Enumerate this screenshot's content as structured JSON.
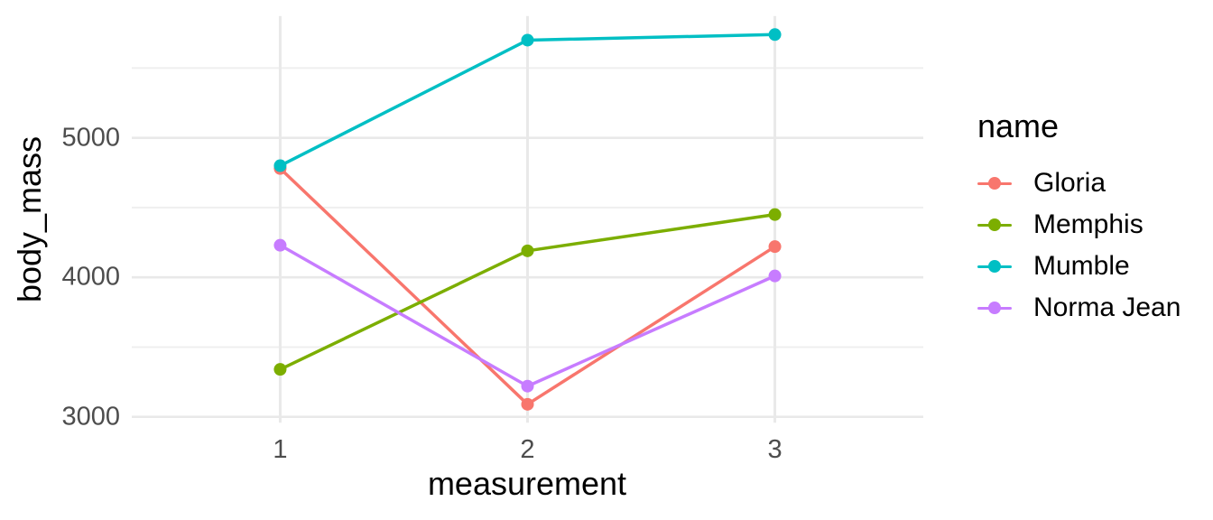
{
  "chart_data": {
    "type": "line",
    "title": "",
    "xlabel": "measurement",
    "ylabel": "body_mass",
    "legend_title": "name",
    "legend_position": "right",
    "grid": "on",
    "x": [
      1,
      2,
      3
    ],
    "x_tick_labels": [
      "1",
      "2",
      "3"
    ],
    "y_tick_labels": [
      "3000",
      "4000",
      "5000"
    ],
    "y_major_breaks": [
      3000,
      4000,
      5000
    ],
    "y_minor_breaks": [
      3500,
      4500,
      5500
    ],
    "ylim": [
      2957.5,
      5872.5
    ],
    "xlim_units": [
      0.4,
      3.6
    ],
    "series": [
      {
        "name": "Gloria",
        "color": "#F8766D",
        "values": [
          4780,
          3090,
          4220
        ]
      },
      {
        "name": "Memphis",
        "color": "#7CAE00",
        "values": [
          3340,
          4190,
          4450
        ]
      },
      {
        "name": "Mumble",
        "color": "#00BFC4",
        "values": [
          4800,
          5700,
          5740
        ]
      },
      {
        "name": "Norma Jean",
        "color": "#C77CFF",
        "values": [
          4230,
          3220,
          4010
        ]
      }
    ],
    "colors": {
      "grid_major": "#E9E9E9",
      "grid_minor": "#EFEFEF",
      "tick_text": "#4D4D4D",
      "title_text": "#000000",
      "background": "#FFFFFF"
    }
  }
}
